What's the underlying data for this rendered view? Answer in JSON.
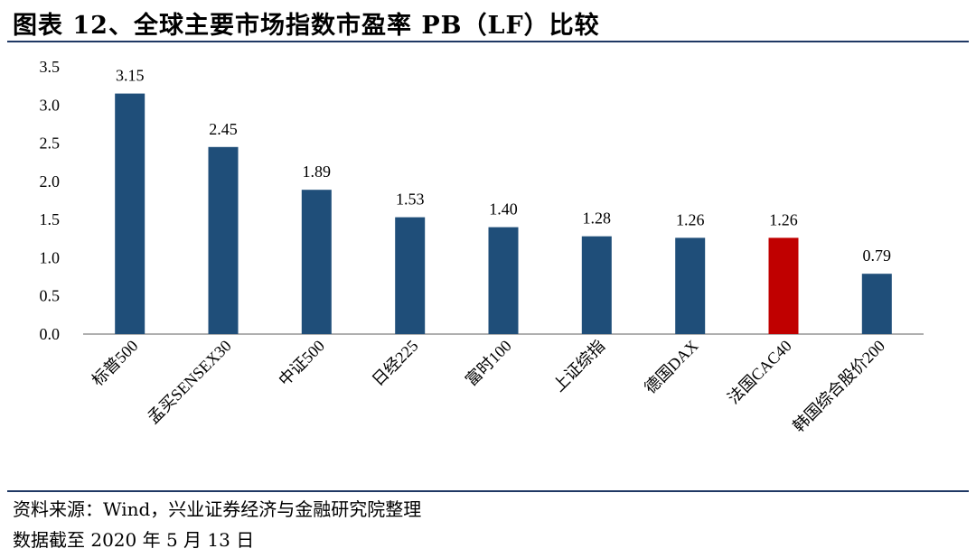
{
  "header": {
    "title": "图表 12、全球主要市场指数市盈率 PB（LF）比较"
  },
  "footer": {
    "source": "资料来源：Wind，兴业证券经济与金融研究院整理",
    "date_note": "数据截至 2020 年 5 月 13 日"
  },
  "chart_data": {
    "type": "bar",
    "categories": [
      "标普500",
      "孟买SENSEX30",
      "中证500",
      "日经225",
      "富时100",
      "上证综指",
      "德国DAX",
      "法国CAC40",
      "韩国综合股价200"
    ],
    "values": [
      3.15,
      2.45,
      1.89,
      1.53,
      1.4,
      1.28,
      1.26,
      1.26,
      0.79
    ],
    "data_labels": [
      "3.15",
      "2.45",
      "1.89",
      "1.53",
      "1.40",
      "1.28",
      "1.26",
      "1.26",
      "0.79"
    ],
    "ylim": [
      0,
      3.5
    ],
    "yticks": [
      0.0,
      0.5,
      1.0,
      1.5,
      2.0,
      2.5,
      3.0,
      3.5
    ],
    "ytick_labels": [
      "0.0",
      "0.5",
      "1.0",
      "1.5",
      "2.0",
      "2.5",
      "3.0",
      "3.5"
    ],
    "grid": false,
    "legend": "none",
    "colors": {
      "default": "#1f4e79",
      "highlight": "#c00000",
      "highlight_category": "法国CAC40"
    }
  }
}
